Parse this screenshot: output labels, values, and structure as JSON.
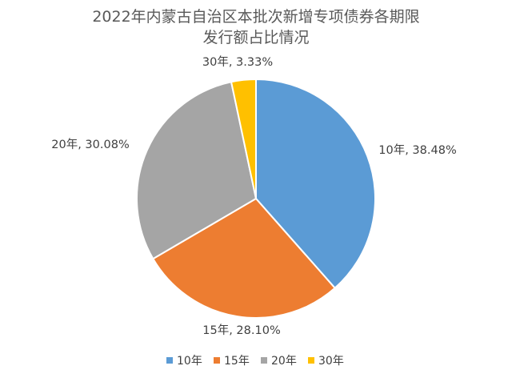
{
  "chart_data": {
    "type": "pie",
    "title_lines": [
      "2022年内蒙古自治区本批次新增专项债券各期限",
      "发行额占比情况"
    ],
    "categories": [
      "10年",
      "15年",
      "20年",
      "30年"
    ],
    "values": [
      38.48,
      28.1,
      30.08,
      3.33
    ],
    "data_labels": [
      "10年, 38.48%",
      "15年, 28.10%",
      "20年, 30.08%",
      "30年, 3.33%"
    ],
    "colors": [
      "#5B9BD5",
      "#ED7D31",
      "#A5A5A5",
      "#FFC000"
    ],
    "legend_position": "bottom"
  }
}
